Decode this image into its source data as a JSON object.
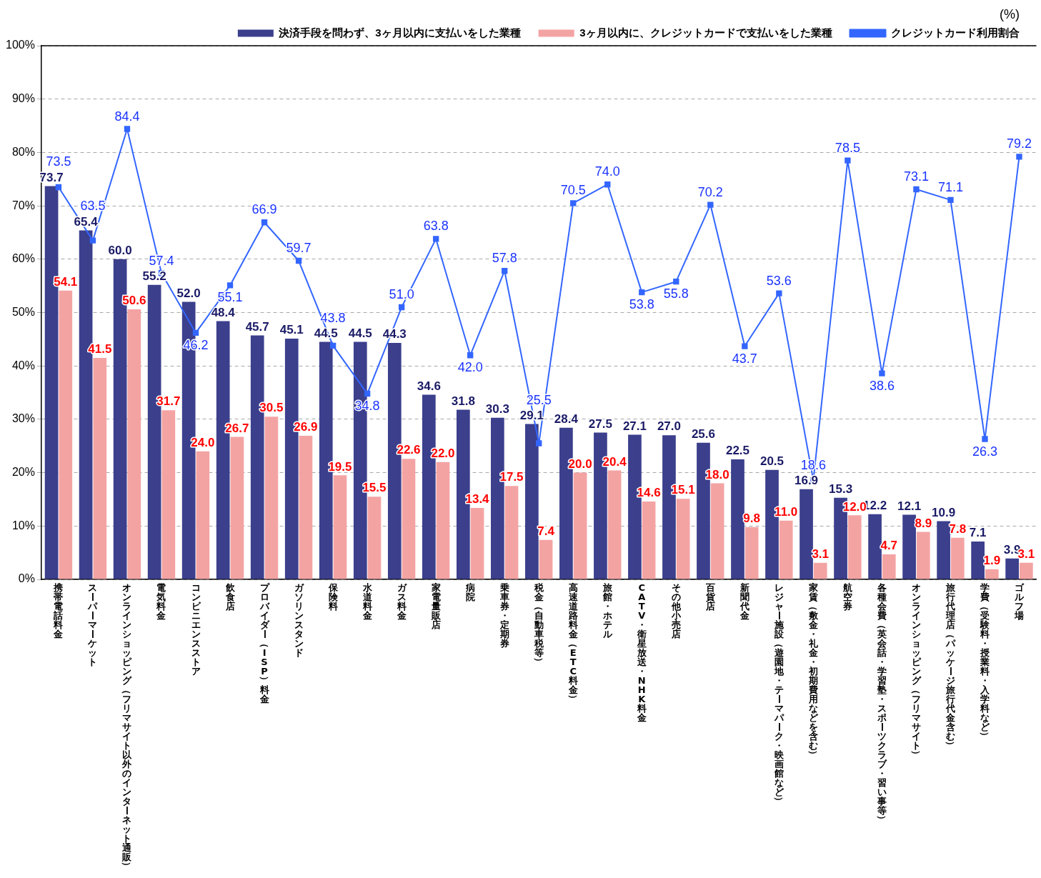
{
  "chart_data": {
    "type": "bar",
    "categories": [
      "携帯電話料金",
      "スーパーマーケット",
      "オンラインショッピング（フリマサイト以外のインターネット通販）",
      "電気料金",
      "コンビニエンスストア",
      "飲食店",
      "プロバイダー（ISP）料金",
      "ガソリンスタンド",
      "保険料",
      "水道料金",
      "ガス料金",
      "家電量販店",
      "病院",
      "乗車券・定期券",
      "税金（自動車税等）",
      "高速道路料金（ETC料金）",
      "旅館・ホテル",
      "CATV・衛星放送・NHK料金",
      "その他小売店",
      "百貨店",
      "新聞代金",
      "レジャー施設（遊園地・テーマパーク・映画館など）",
      "家賃（敷金・礼金・初期費用などを含む）",
      "航空券",
      "各種会費（英会話・学習塾・スポーツクラブ・習い事等）",
      "オンラインショッピング（フリマサイト）",
      "旅行代理店（パッケージ旅行代金含む）",
      "学費（受験料・授業料・入学料など）",
      "ゴルフ場"
    ],
    "series": [
      {
        "name": "決済手段を問わず、3ヶ月以内に支払いをした業種",
        "color": "#3b3f8c",
        "values": [
          73.7,
          65.4,
          60.0,
          55.2,
          52.0,
          48.4,
          45.7,
          45.1,
          44.5,
          44.5,
          44.3,
          34.6,
          31.8,
          30.3,
          29.1,
          28.4,
          27.5,
          27.1,
          27.0,
          25.6,
          22.5,
          20.5,
          16.9,
          15.3,
          12.2,
          12.1,
          10.9,
          7.1,
          3.9
        ],
        "value_labels": [
          "73.7",
          "65.4",
          "60.0",
          "55.2",
          "52.0",
          "48.4",
          "45.7",
          "45.1",
          "44.5",
          "44.5",
          "44.3",
          "34.6",
          "31.8",
          "30.3",
          "29.1",
          "28.4",
          "27.5",
          "27.1",
          "27.0",
          "25.6",
          "22.5",
          "20.5",
          "16.9",
          "15.3",
          "12.2",
          "12.1",
          "10.9",
          "7.1",
          "3.9"
        ]
      },
      {
        "name": "3ヶ月以内に、クレジットカードで支払いをした業種",
        "color": "#f4a3a3",
        "values": [
          54.1,
          41.5,
          50.6,
          31.7,
          24.0,
          26.7,
          30.5,
          26.9,
          19.5,
          15.5,
          22.6,
          22.0,
          13.4,
          17.5,
          7.4,
          20.0,
          20.4,
          14.6,
          15.1,
          18.0,
          9.8,
          11.0,
          3.1,
          12.0,
          4.7,
          8.9,
          7.8,
          1.9,
          3.1
        ],
        "value_labels": [
          "54.1",
          "41.5",
          "50.6",
          "31.7",
          "24.0",
          "26.7",
          "30.5",
          "26.9",
          "19.5",
          "15.5",
          "22.6",
          "22.0",
          "13.4",
          "17.5",
          "7.4",
          "20.0",
          "20.4",
          "14.6",
          "15.1",
          "18.0",
          "9.8",
          "11.0",
          "3.1",
          "12.0",
          "4.7",
          "8.9",
          "7.8",
          "1.9",
          "3.1"
        ]
      },
      {
        "name": "クレジットカード利用割合",
        "type": "line",
        "color": "#3366ff",
        "values": [
          73.5,
          63.5,
          84.4,
          57.4,
          46.2,
          55.1,
          66.9,
          59.7,
          43.8,
          34.8,
          51.0,
          63.8,
          42.0,
          57.8,
          25.5,
          70.5,
          74.0,
          53.8,
          55.8,
          70.2,
          43.7,
          53.6,
          18.6,
          78.5,
          38.6,
          73.1,
          71.1,
          26.3,
          79.2
        ],
        "value_labels": [
          "73.5",
          "63.5",
          "84.4",
          "57.4",
          "46.2",
          "55.1",
          "66.9",
          "59.7",
          "43.8",
          "34.8",
          "51.0",
          "63.8",
          "42.0",
          "57.8",
          "25.5",
          "70.5",
          "74.0",
          "53.8",
          "55.8",
          "70.2",
          "43.7",
          "53.6",
          "18.6",
          "78.5",
          "38.6",
          "73.1",
          "71.1",
          "26.3",
          "79.2"
        ]
      }
    ],
    "ylim": [
      0,
      100
    ],
    "yticks": [
      {
        "value": 0,
        "label": "0%"
      },
      {
        "value": 10,
        "label": "10%"
      },
      {
        "value": 20,
        "label": "20%"
      },
      {
        "value": 30,
        "label": "30%"
      },
      {
        "value": 40,
        "label": "40%"
      },
      {
        "value": 50,
        "label": "50%"
      },
      {
        "value": 60,
        "label": "60%"
      },
      {
        "value": 70,
        "label": "70%"
      },
      {
        "value": 80,
        "label": "80%"
      },
      {
        "value": 90,
        "label": "90%"
      },
      {
        "value": 100,
        "label": "100%"
      }
    ],
    "annotations": [
      "(%)"
    ],
    "grid": "y",
    "legend": "top right",
    "marker": "square",
    "line_style": "solid"
  }
}
